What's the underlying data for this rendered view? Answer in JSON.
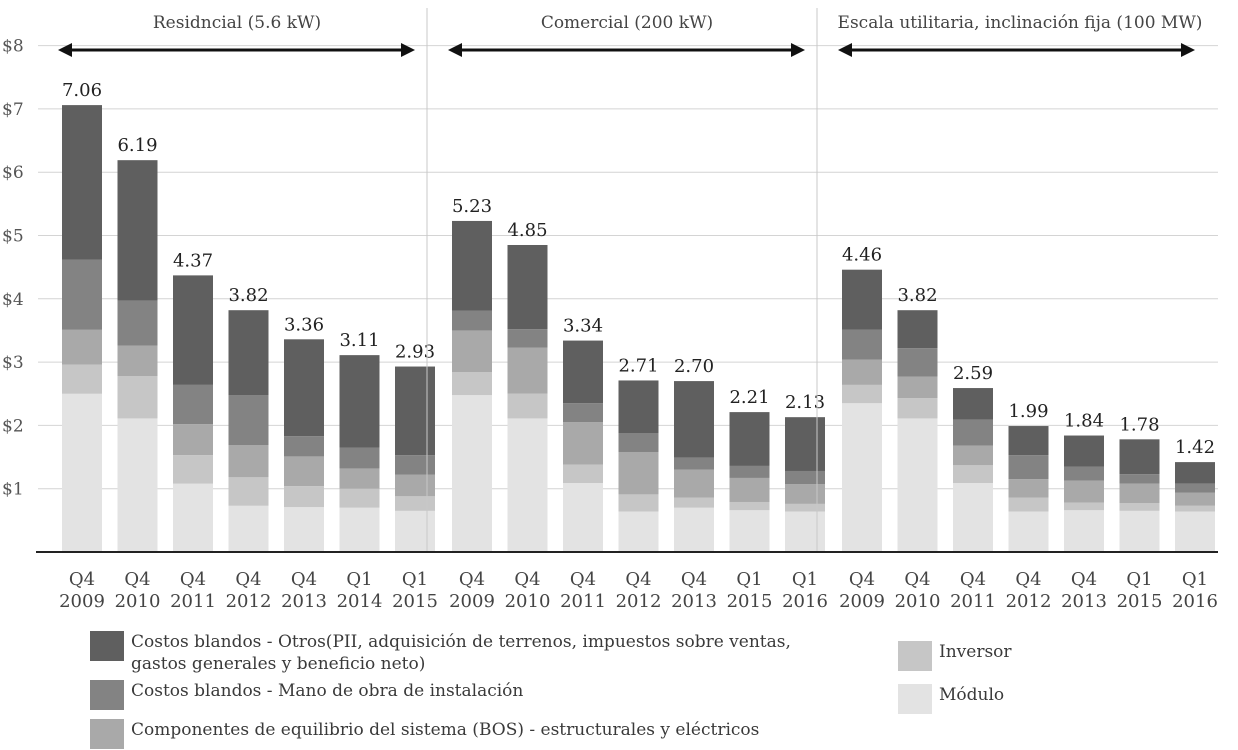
{
  "chart_data": {
    "type": "bar",
    "stacked": true,
    "ylim": [
      0,
      8
    ],
    "y_ticks": [
      "$1",
      "$2",
      "$3",
      "$4",
      "$5",
      "$6",
      "$7",
      "$8"
    ],
    "grid": true,
    "legend_position": "bottom",
    "groups": [
      {
        "label": "Residncial (5.6 kW)",
        "categories": [
          [
            "Q4",
            "2009"
          ],
          [
            "Q4",
            "2010"
          ],
          [
            "Q4",
            "2011"
          ],
          [
            "Q4",
            "2012"
          ],
          [
            "Q4",
            "2013"
          ],
          [
            "Q1",
            "2014"
          ],
          [
            "Q1",
            "2015"
          ]
        ],
        "totals": [
          "7.06",
          "6.19",
          "4.37",
          "3.82",
          "3.36",
          "3.11",
          "2.93"
        ],
        "series": {
          "module": [
            2.5,
            2.11,
            1.08,
            0.73,
            0.71,
            0.7,
            0.65
          ],
          "inverter": [
            0.46,
            0.67,
            0.45,
            0.45,
            0.33,
            0.3,
            0.23
          ],
          "bos": [
            0.55,
            0.48,
            0.49,
            0.51,
            0.47,
            0.32,
            0.34
          ],
          "labor": [
            1.11,
            0.71,
            0.62,
            0.79,
            0.32,
            0.33,
            0.31
          ],
          "soft_other": [
            2.44,
            2.22,
            1.73,
            1.34,
            1.53,
            1.46,
            1.4
          ]
        }
      },
      {
        "label": "Comercial (200 kW)",
        "categories": [
          [
            "Q4",
            "2009"
          ],
          [
            "Q4",
            "2010"
          ],
          [
            "Q4",
            "2011"
          ],
          [
            "Q4",
            "2012"
          ],
          [
            "Q4",
            "2013"
          ],
          [
            "Q1",
            "2015"
          ],
          [
            "Q1",
            "2016"
          ]
        ],
        "totals": [
          "5.23",
          "4.85",
          "3.34",
          "2.71",
          "2.70",
          "2.21",
          "2.13"
        ],
        "series": {
          "module": [
            2.48,
            2.11,
            1.09,
            0.64,
            0.7,
            0.66,
            0.64
          ],
          "inverter": [
            0.36,
            0.39,
            0.29,
            0.27,
            0.16,
            0.13,
            0.12
          ],
          "bos": [
            0.66,
            0.73,
            0.67,
            0.67,
            0.44,
            0.38,
            0.31
          ],
          "labor": [
            0.31,
            0.29,
            0.3,
            0.3,
            0.19,
            0.19,
            0.21
          ],
          "soft_other": [
            1.42,
            1.33,
            0.99,
            0.83,
            1.21,
            0.85,
            0.85
          ]
        }
      },
      {
        "label": "Escala utilitaria, inclinación fija (100 MW)",
        "categories": [
          [
            "Q4",
            "2009"
          ],
          [
            "Q4",
            "2010"
          ],
          [
            "Q4",
            "2011"
          ],
          [
            "Q4",
            "2012"
          ],
          [
            "Q4",
            "2013"
          ],
          [
            "Q1",
            "2015"
          ],
          [
            "Q1",
            "2016"
          ]
        ],
        "totals": [
          "4.46",
          "3.82",
          "2.59",
          "1.99",
          "1.84",
          "1.78",
          "1.42"
        ],
        "series": {
          "module": [
            2.35,
            2.11,
            1.09,
            0.64,
            0.66,
            0.65,
            0.64
          ],
          "inverter": [
            0.29,
            0.32,
            0.28,
            0.22,
            0.12,
            0.12,
            0.09
          ],
          "bos": [
            0.4,
            0.34,
            0.31,
            0.29,
            0.35,
            0.31,
            0.21
          ],
          "labor": [
            0.47,
            0.45,
            0.41,
            0.38,
            0.22,
            0.15,
            0.14
          ],
          "soft_other": [
            0.95,
            0.6,
            0.5,
            0.46,
            0.49,
            0.55,
            0.34
          ]
        }
      }
    ],
    "series_order": [
      "module",
      "inverter",
      "bos",
      "labor",
      "soft_other"
    ],
    "series_colors": {
      "module": "#e3e3e3",
      "inverter": "#c6c6c6",
      "bos": "#a9a9a9",
      "labor": "#838383",
      "soft_other": "#5f5f5f"
    },
    "colors": {
      "grid": "#d4d4d4",
      "axis": "#222222",
      "divider": "#c8c8c8",
      "arrow": "#111111",
      "tick_text": "#555555",
      "value_text": "#222222"
    }
  },
  "legend": [
    {
      "key": "soft_other",
      "label": "Costos blandos - Otros(PII, adquisición de terrenos, impuestos sobre ventas, gastos generales y beneficio neto)"
    },
    {
      "key": "labor",
      "label": "Costos blandos - Mano de obra de instalación"
    },
    {
      "key": "bos",
      "label": "Componentes de equilibrio del sistema (BOS) - estructurales y eléctricos"
    },
    {
      "key": "inverter",
      "label": "Inversor"
    },
    {
      "key": "module",
      "label": "Módulo"
    }
  ]
}
